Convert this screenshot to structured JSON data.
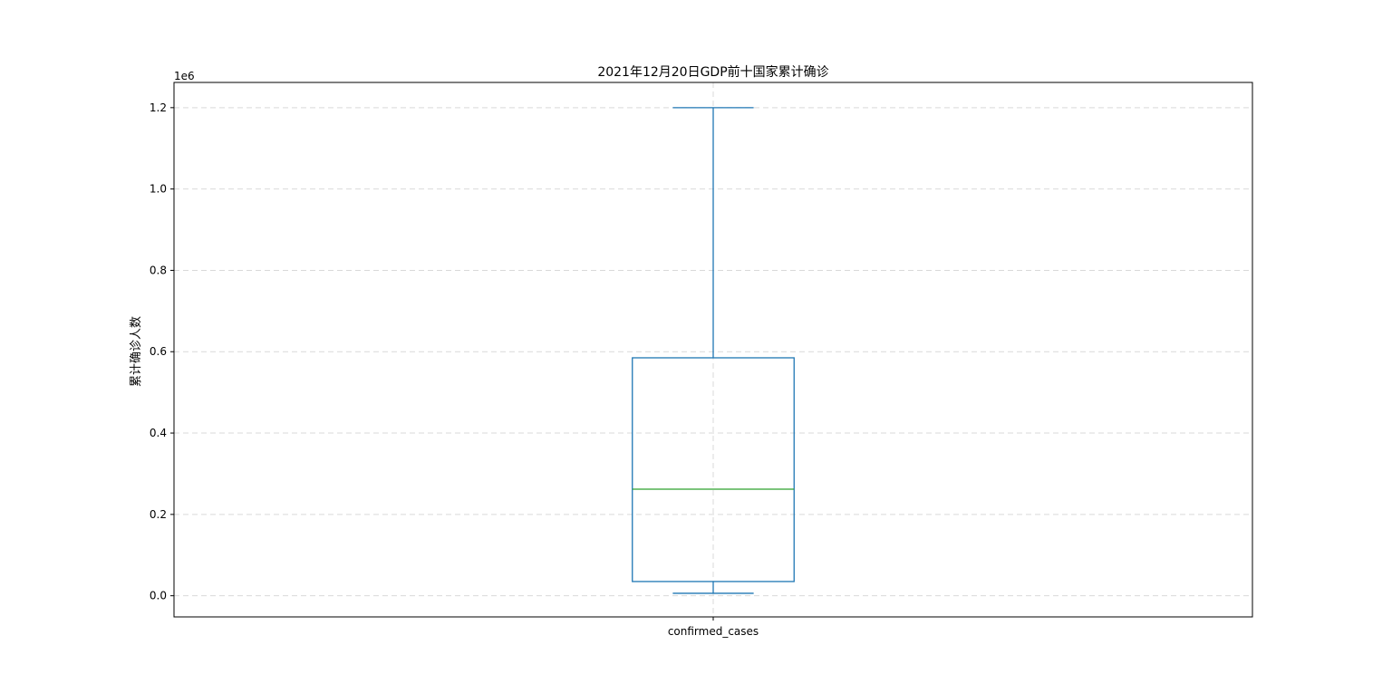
{
  "chart_data": {
    "type": "boxplot",
    "title": "2021年12月20日GDP前十国家累计确诊",
    "ylabel": "累计确诊人数",
    "xlabel": "",
    "y_offset_label": "1e6",
    "categories": [
      "confirmed_cases"
    ],
    "boxes": [
      {
        "name": "confirmed_cases",
        "whisker_low": 6000,
        "q1": 35000,
        "median": 262000,
        "q3": 585000,
        "whisker_high": 1200000
      }
    ],
    "ylim": [
      -52000,
      1262000
    ],
    "y_ticks": [
      0,
      200000,
      400000,
      600000,
      800000,
      1000000,
      1200000
    ],
    "y_tick_labels": [
      "0.0",
      "0.2",
      "0.4",
      "0.6",
      "0.8",
      "1.0",
      "1.2"
    ],
    "grid": true,
    "colors": {
      "box": "#1f77b4",
      "median": "#2ca02c",
      "grid": "#d9d9d9",
      "axes": "#000000"
    }
  }
}
